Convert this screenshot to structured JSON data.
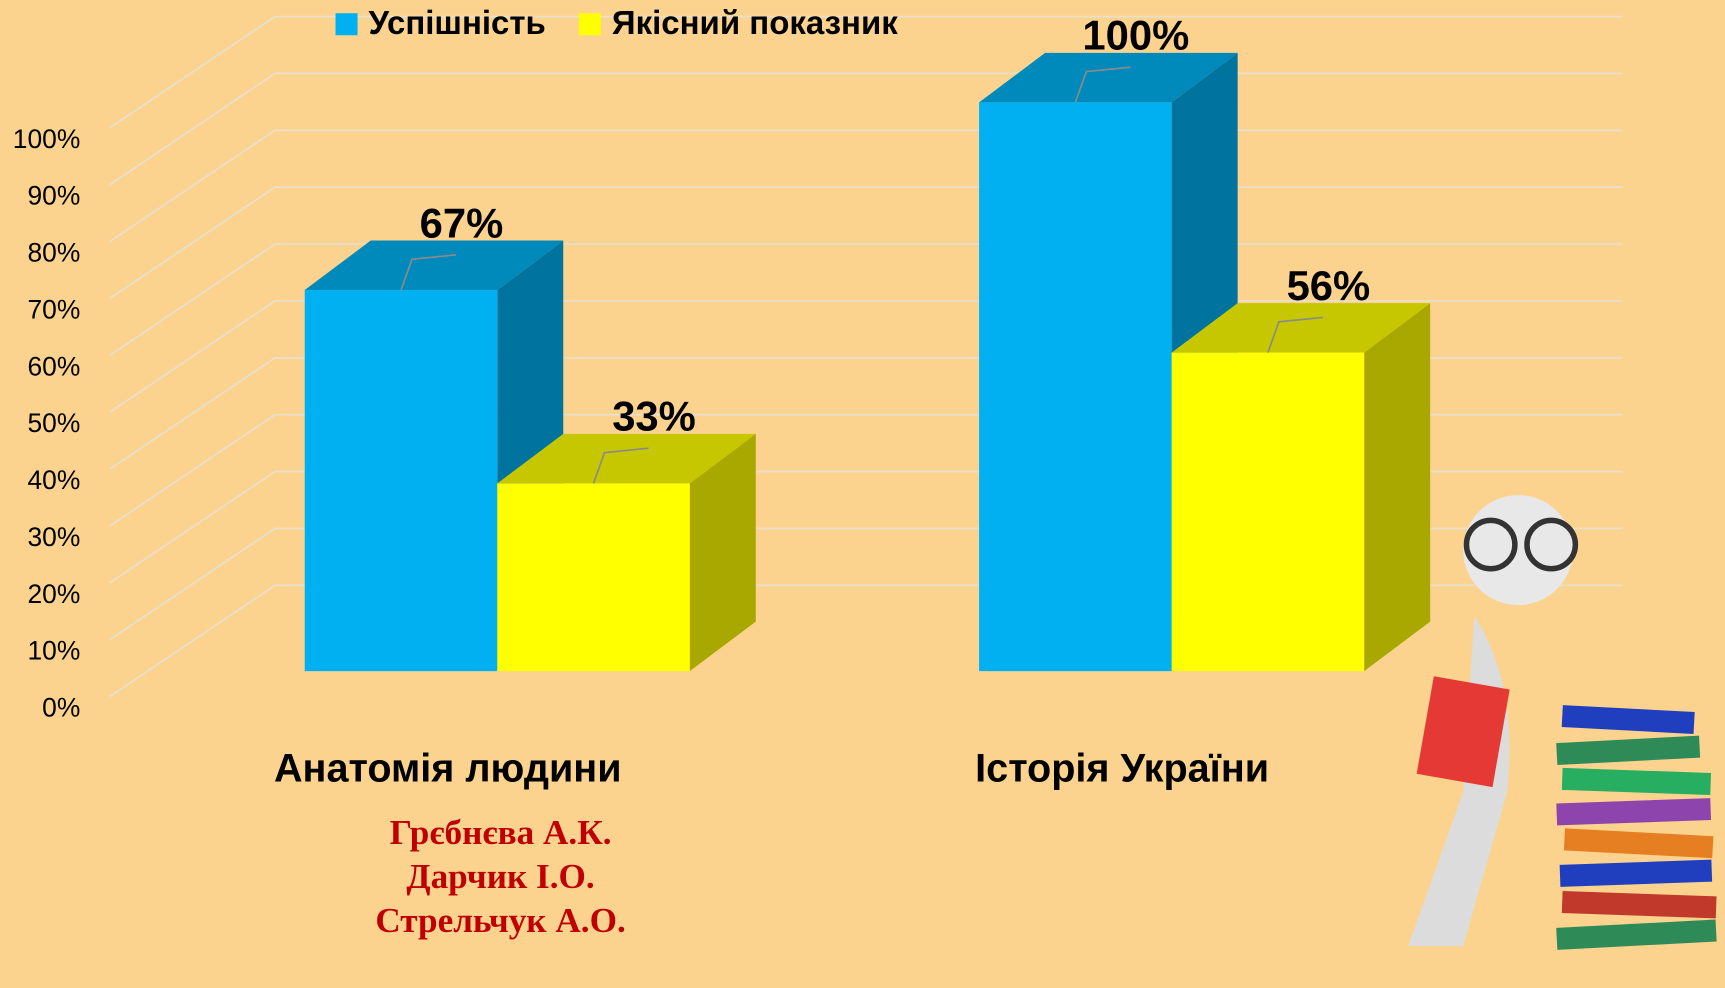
{
  "chart_data": {
    "type": "bar3d",
    "categories": [
      "Анатомія людини",
      "Історія України"
    ],
    "series": [
      {
        "name": "Успішність",
        "color": "#00b0f0",
        "values": [
          67,
          100
        ],
        "value_labels": [
          "67%",
          "100%"
        ]
      },
      {
        "name": "Якісний показник",
        "color": "#ffff00",
        "values": [
          33,
          56
        ],
        "value_labels": [
          "33%",
          "56%"
        ]
      }
    ],
    "ylim": [
      0,
      100
    ],
    "yticks": [
      {
        "value": 0,
        "label": "0%"
      },
      {
        "value": 10,
        "label": "10%"
      },
      {
        "value": 20,
        "label": "20%"
      },
      {
        "value": 30,
        "label": "30%"
      },
      {
        "value": 40,
        "label": "40%"
      },
      {
        "value": 50,
        "label": "50%"
      },
      {
        "value": 60,
        "label": "60%"
      },
      {
        "value": 70,
        "label": "70%"
      },
      {
        "value": 80,
        "label": "80%"
      },
      {
        "value": 90,
        "label": "90%"
      },
      {
        "value": 100,
        "label": "100%"
      }
    ],
    "grid": true,
    "legend": "top"
  },
  "authors": [
    "Грєбнєва А.К.",
    "Дарчик І.О.",
    "Стрельчук А.О."
  ]
}
